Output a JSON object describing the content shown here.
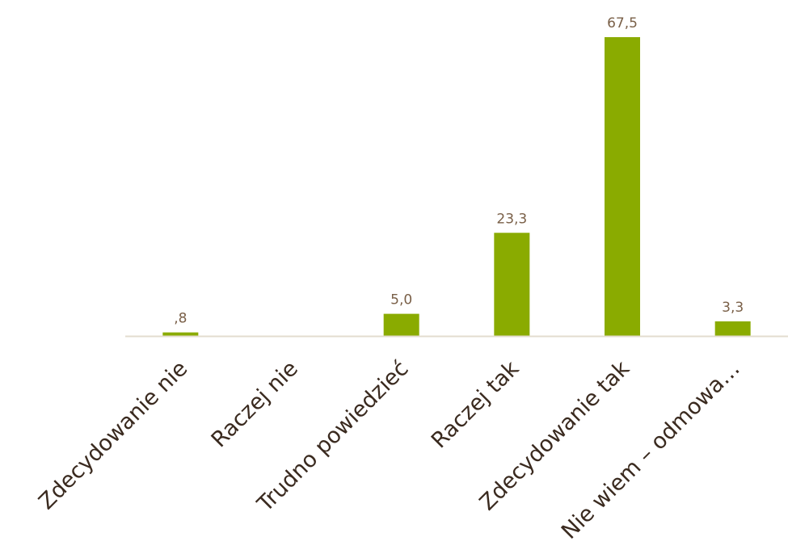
{
  "chart_data": {
    "type": "bar",
    "categories": [
      "Zdecydowanie nie",
      "Raczej nie",
      "Trudno powiedzieć",
      "Raczej tak",
      "Zdecydowanie tak",
      "Nie wiem – odmowa…"
    ],
    "values": [
      0.8,
      0,
      5.0,
      23.3,
      67.5,
      3.3
    ],
    "data_labels": [
      ",8",
      "",
      "5,0",
      "23,3",
      "67,5",
      "3,3"
    ],
    "title": "",
    "xlabel": "",
    "ylabel": "",
    "ylim": [
      0,
      67.5
    ],
    "grid": false,
    "legend": "none",
    "bar_color": "#8aab00",
    "axis_color": "#e3dccf",
    "label_color": "#7a6048",
    "category_color": "#3a2a1f"
  }
}
